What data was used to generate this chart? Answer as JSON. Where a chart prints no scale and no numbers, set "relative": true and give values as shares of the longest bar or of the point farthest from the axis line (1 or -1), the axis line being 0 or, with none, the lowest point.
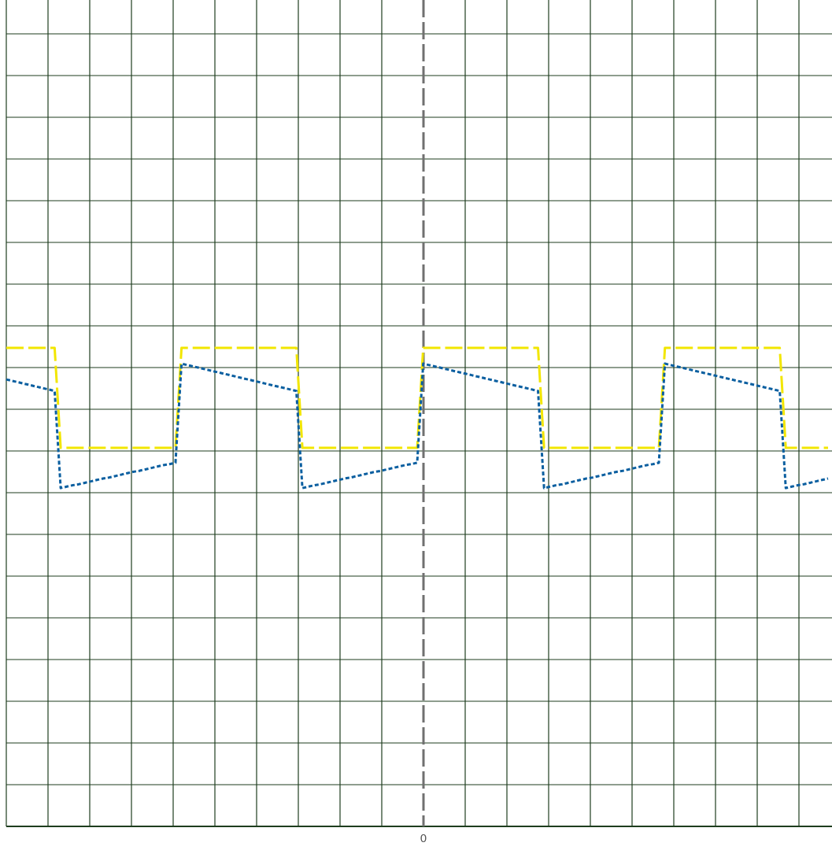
{
  "chart_data": {
    "type": "line",
    "relative": true,
    "grid": true,
    "categories": [
      null,
      null,
      null,
      null,
      null,
      null,
      null,
      null,
      null,
      null,
      null,
      null,
      null,
      null,
      null,
      null,
      null,
      null,
      null,
      null,
      null,
      null,
      null,
      null,
      null,
      null,
      null,
      null,
      null,
      null,
      null,
      null,
      null,
      null,
      null,
      null,
      null,
      null,
      null,
      null,
      null,
      null,
      null,
      null,
      null,
      null,
      null,
      null,
      null,
      null,
      null,
      null,
      null,
      null,
      null,
      null,
      null,
      null,
      null,
      null,
      null,
      null,
      null,
      null,
      null,
      null,
      null,
      null,
      null,
      null,
      null,
      null,
      null,
      null,
      null,
      null,
      null,
      null,
      null,
      null,
      null,
      null,
      null,
      null,
      null,
      null,
      null,
      null,
      null,
      null,
      null,
      null,
      null,
      null,
      null,
      null,
      null,
      null,
      null,
      null,
      null,
      null,
      null,
      null,
      null,
      null,
      null,
      null,
      null,
      null,
      null,
      null,
      null,
      null,
      null,
      null,
      null,
      null,
      null,
      null,
      null,
      null,
      null,
      null,
      null,
      null,
      null,
      null,
      null,
      null,
      null,
      null,
      null,
      null,
      null,
      null,
      null
    ],
    "annotations": [
      "0"
    ],
    "series": [
      {
        "color": "#f2e600",
        "line_style": "dashed",
        "values": [
          1,
          1,
          1,
          1,
          1,
          1,
          1,
          1,
          1,
          0.791,
          0.791,
          0.791,
          0.791,
          0.791,
          0.791,
          0.791,
          0.791,
          0.791,
          0.791,
          0.791,
          0.791,
          0.791,
          0.791,
          0.791,
          0.791,
          0.791,
          0.791,
          0.791,
          0.791,
          1,
          1,
          1,
          1,
          1,
          1,
          1,
          1,
          1,
          1,
          1,
          1,
          1,
          1,
          1,
          1,
          1,
          1,
          1,
          1,
          0.791,
          0.791,
          0.791,
          0.791,
          0.791,
          0.791,
          0.791,
          0.791,
          0.791,
          0.791,
          0.791,
          0.791,
          0.791,
          0.791,
          0.791,
          0.791,
          0.791,
          0.791,
          0.791,
          0.791,
          1,
          1,
          1,
          1,
          1,
          1,
          1,
          1,
          1,
          1,
          1,
          1,
          1,
          1,
          1,
          1,
          1,
          1,
          1,
          1,
          0.791,
          0.791,
          0.791,
          0.791,
          0.791,
          0.791,
          0.791,
          0.791,
          0.791,
          0.791,
          0.791,
          0.791,
          0.791,
          0.791,
          0.791,
          0.791,
          0.791,
          0.791,
          0.791,
          0.791,
          1,
          1,
          1,
          1,
          1,
          1,
          1,
          1,
          1,
          1,
          1,
          1,
          1,
          1,
          1,
          1,
          1,
          1,
          1,
          1,
          0.791,
          0.791,
          0.791,
          0.791,
          0.791,
          0.791,
          0.791,
          0.791
        ]
      },
      {
        "color": "#0b5fa0",
        "line_style": "dotted",
        "values": [
          0.934,
          0.931,
          0.928,
          0.925,
          0.922,
          0.919,
          0.916,
          0.913,
          0.91,
          0.707,
          0.71,
          0.713,
          0.715,
          0.718,
          0.721,
          0.724,
          0.727,
          0.729,
          0.732,
          0.735,
          0.738,
          0.741,
          0.743,
          0.746,
          0.749,
          0.752,
          0.755,
          0.757,
          0.76,
          0.967,
          0.964,
          0.961,
          0.958,
          0.955,
          0.952,
          0.949,
          0.946,
          0.943,
          0.94,
          0.937,
          0.934,
          0.931,
          0.928,
          0.925,
          0.922,
          0.919,
          0.916,
          0.913,
          0.91,
          0.707,
          0.71,
          0.713,
          0.715,
          0.718,
          0.721,
          0.724,
          0.727,
          0.729,
          0.732,
          0.735,
          0.738,
          0.741,
          0.743,
          0.746,
          0.749,
          0.752,
          0.755,
          0.757,
          0.76,
          0.967,
          0.964,
          0.961,
          0.958,
          0.955,
          0.952,
          0.949,
          0.946,
          0.943,
          0.94,
          0.937,
          0.934,
          0.931,
          0.928,
          0.925,
          0.922,
          0.919,
          0.916,
          0.913,
          0.91,
          0.707,
          0.71,
          0.713,
          0.715,
          0.718,
          0.721,
          0.724,
          0.727,
          0.729,
          0.732,
          0.735,
          0.738,
          0.741,
          0.743,
          0.746,
          0.749,
          0.752,
          0.755,
          0.757,
          0.76,
          0.967,
          0.964,
          0.961,
          0.958,
          0.955,
          0.952,
          0.949,
          0.946,
          0.943,
          0.94,
          0.937,
          0.934,
          0.931,
          0.928,
          0.925,
          0.922,
          0.919,
          0.916,
          0.913,
          0.91,
          0.707,
          0.71,
          0.713,
          0.715,
          0.718,
          0.721,
          0.724,
          0.727
        ]
      }
    ]
  }
}
